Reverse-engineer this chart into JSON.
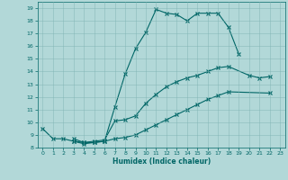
{
  "xlabel": "Humidex (Indice chaleur)",
  "bg_color": "#b2d8d8",
  "line_color": "#006666",
  "grid_color": "#80b3b3",
  "xlim": [
    -0.5,
    23.5
  ],
  "ylim": [
    8,
    19.5
  ],
  "xticks": [
    0,
    1,
    2,
    3,
    4,
    5,
    6,
    7,
    8,
    9,
    10,
    11,
    12,
    13,
    14,
    15,
    16,
    17,
    18,
    19,
    20,
    21,
    22,
    23
  ],
  "yticks": [
    8,
    9,
    10,
    11,
    12,
    13,
    14,
    15,
    16,
    17,
    18,
    19
  ],
  "series1_x": [
    0,
    1,
    2,
    3,
    4,
    5,
    6,
    7,
    8,
    9,
    10,
    11,
    12,
    13,
    14,
    15,
    16,
    17,
    18,
    19
  ],
  "series1_y": [
    9.5,
    8.7,
    8.7,
    8.5,
    8.4,
    8.4,
    8.5,
    11.2,
    13.8,
    15.8,
    17.1,
    18.9,
    18.6,
    18.5,
    18.0,
    18.6,
    18.6,
    18.6,
    17.5,
    15.4
  ],
  "series2_x": [
    3,
    4,
    5,
    6,
    7,
    8,
    9,
    10,
    11,
    12,
    13,
    14,
    15,
    16,
    17,
    18,
    20,
    21,
    22
  ],
  "series2_y": [
    8.7,
    8.4,
    8.5,
    8.6,
    10.1,
    10.2,
    10.5,
    11.5,
    12.2,
    12.8,
    13.2,
    13.5,
    13.7,
    14.0,
    14.3,
    14.4,
    13.7,
    13.5,
    13.6
  ],
  "series3_x": [
    3,
    4,
    5,
    6,
    7,
    8,
    9,
    10,
    11,
    12,
    13,
    14,
    15,
    16,
    17,
    18,
    22
  ],
  "series3_y": [
    8.5,
    8.3,
    8.4,
    8.5,
    8.7,
    8.8,
    9.0,
    9.4,
    9.8,
    10.2,
    10.6,
    11.0,
    11.4,
    11.8,
    12.1,
    12.4,
    12.3
  ]
}
